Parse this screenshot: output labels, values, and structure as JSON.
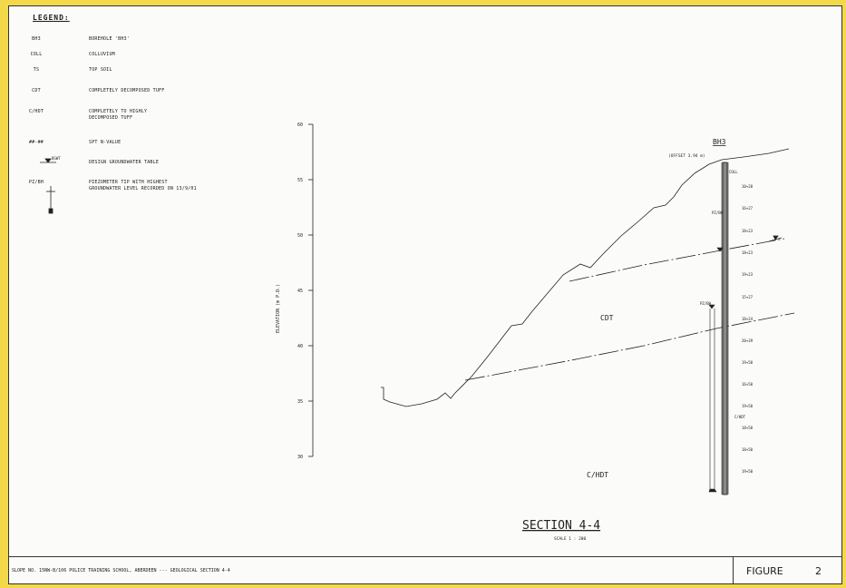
{
  "legend": {
    "title": "LEGEND:",
    "items": [
      {
        "symbol": "BH3",
        "text": "BOREHOLE 'BH3'"
      },
      {
        "symbol": "COLL",
        "text": "COLLUVIUM"
      },
      {
        "symbol": "TS",
        "text": "TOP SOIL"
      },
      {
        "symbol": "CDT",
        "text": "COMPLETELY DECOMPOSED TUFF"
      },
      {
        "symbol": "C/HDT",
        "text": "COMPLETELY TO HIGHLY",
        "text2": "DECOMPOSED TUFF"
      },
      {
        "symbol": "##-##",
        "text": "SPT N-VALUE"
      },
      {
        "symbol": "DGWT",
        "text": "DESIGN GROUNDWATER TABLE"
      },
      {
        "symbol": "PZ/BH",
        "text": "PIEZOMETER TIP WITH HIGHEST",
        "text2": "GROUNDWATER LEVEL RECORDED ON 13/9/01"
      }
    ]
  },
  "axis": {
    "label": "ELEVATION (m P.D.)",
    "ticks": [
      "60",
      "55",
      "50",
      "45",
      "40",
      "35",
      "30"
    ]
  },
  "borehole": {
    "name": "BH3",
    "offset": "(OFFSET 3.94 m)",
    "coll_label": "COLL",
    "spt_values": [
      "10+20",
      "16+27",
      "18+23",
      "18+23",
      "19+23",
      "15+27",
      "18+24",
      "20+39",
      "19+50",
      "16+50",
      "19+50",
      "18+50",
      "18+50",
      "19+50",
      "19+50"
    ],
    "side_labels": [
      "PZ/BH",
      "PZ/BH",
      "C/HDT"
    ]
  },
  "strata": {
    "cdt": "CDT",
    "chdt": "C/HDT"
  },
  "section": {
    "title": "SECTION 4-4",
    "scale": "SCALE 1 : 200"
  },
  "title_block": {
    "text": "SLOPE NO. 15NW-B/106 POLICE TRAINING SCHOOL, ABERDEEN --- GEOLOGICAL SECTION 4-4",
    "figure_label": "FIGURE",
    "figure_number": "2"
  }
}
